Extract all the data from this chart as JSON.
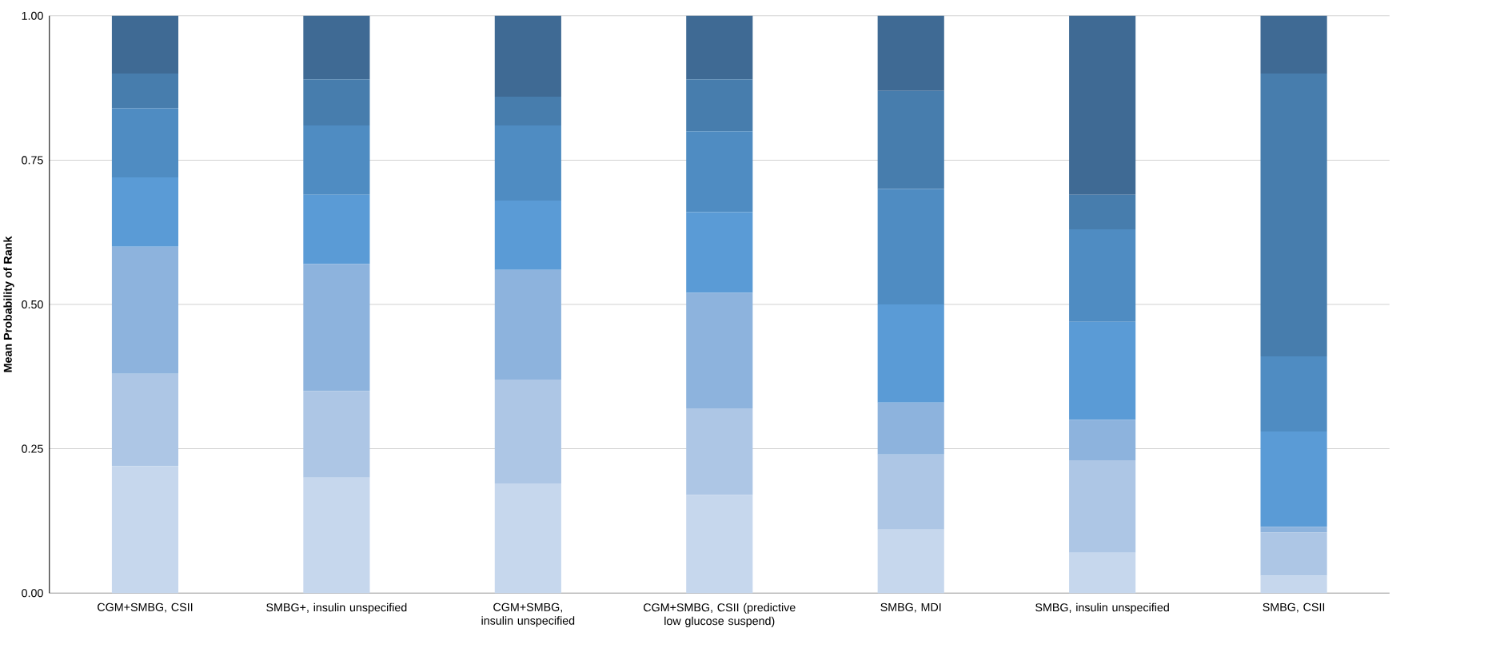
{
  "chart_data": {
    "type": "bar",
    "stacked": true,
    "ylabel": "Mean Probability of Rank",
    "categories": [
      "CGM+SMBG, CSII",
      "SMBG+, insulin unspecified",
      "CGM+SMBG, insulin unspecified",
      "CGM+SMBG, CSII (predictive low glucose suspend)",
      "SMBG, MDI",
      "SMBG, insulin unspecified",
      "SMBG, CSII"
    ],
    "series": [
      {
        "color": "#c6d7ed",
        "values": [
          0.22,
          0.2,
          0.19,
          0.17,
          0.11,
          0.07,
          0.03
        ]
      },
      {
        "color": "#adc6e5",
        "values": [
          0.16,
          0.15,
          0.18,
          0.15,
          0.13,
          0.16,
          0.075
        ]
      },
      {
        "color": "#8db3dd",
        "values": [
          0.22,
          0.22,
          0.19,
          0.2,
          0.09,
          0.07,
          0.01
        ]
      },
      {
        "color": "#5a9bd6",
        "values": [
          0.12,
          0.12,
          0.12,
          0.14,
          0.17,
          0.17,
          0.165
        ]
      },
      {
        "color": "#4f8cc2",
        "values": [
          0.12,
          0.12,
          0.13,
          0.14,
          0.2,
          0.16,
          0.13
        ]
      },
      {
        "color": "#477dad",
        "values": [
          0.06,
          0.08,
          0.05,
          0.09,
          0.17,
          0.06,
          0.49
        ]
      },
      {
        "color": "#3f6a94",
        "values": [
          0.1,
          0.11,
          0.14,
          0.11,
          0.13,
          0.31,
          0.1
        ]
      }
    ],
    "ylim": [
      0,
      1
    ],
    "yticks": [
      {
        "value": 0,
        "label": "0.00"
      },
      {
        "value": 0.25,
        "label": "0.25"
      },
      {
        "value": 0.5,
        "label": "0.50"
      },
      {
        "value": 0.75,
        "label": "0.75"
      },
      {
        "value": 1,
        "label": "1.00"
      }
    ],
    "grid": "y"
  }
}
